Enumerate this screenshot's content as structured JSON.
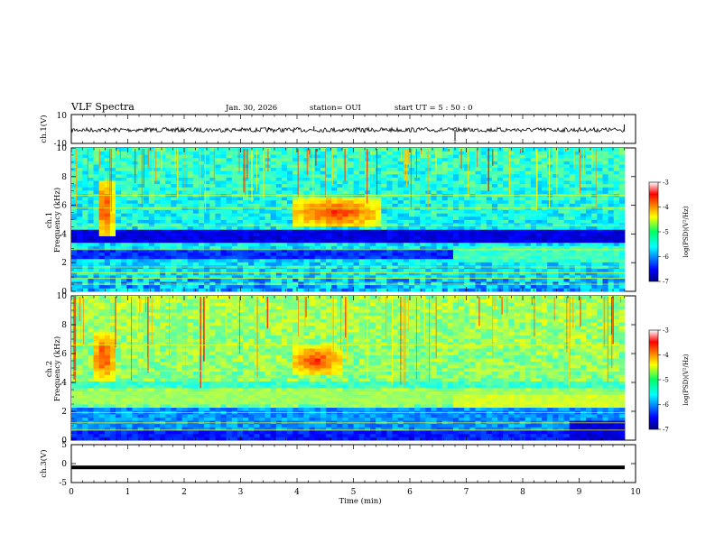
{
  "header": {
    "title": "VLF Spectra",
    "date": "Jan. 30, 2026",
    "station": "station= OUI",
    "start_ut": "start  UT  =   5 : 50 : 0"
  },
  "chart_data": [
    {
      "type": "line",
      "name": "ch1-waveform",
      "ylabel": "ch.1(V)",
      "ylim": [
        -10,
        10
      ],
      "yticks": [
        "10",
        "-10"
      ],
      "xlim": [
        0,
        10
      ],
      "baseline": 0
    },
    {
      "type": "heatmap",
      "name": "ch1-spectrogram",
      "ylabel": [
        "ch.1",
        "Frequency (kHz)"
      ],
      "ylim": [
        0,
        10
      ],
      "yticks": [
        "0",
        "2",
        "4",
        "6",
        "8",
        "10"
      ],
      "xlim": [
        0,
        10
      ],
      "colorbar": {
        "label": "log(PSD)(V²/Hz)",
        "range": [
          -7,
          -3
        ],
        "ticks": [
          "-3",
          "-4",
          "-5",
          "-6",
          "-7"
        ]
      },
      "features": [
        {
          "name": "emission-burst-1",
          "t_min": [
            0.45,
            0.75
          ],
          "f_khz": [
            3.8,
            7.8
          ]
        },
        {
          "name": "emission-burst-2",
          "t_min": [
            3.9,
            5.5
          ],
          "f_khz": [
            4.5,
            6.5
          ]
        }
      ],
      "level_change_at_min": 6.8
    },
    {
      "type": "heatmap",
      "name": "ch2-spectrogram",
      "ylabel": [
        "ch.2",
        "Frequency (kHz)"
      ],
      "ylim": [
        0,
        10
      ],
      "yticks": [
        "0",
        "2",
        "4",
        "6",
        "8",
        "10"
      ],
      "xlim": [
        0,
        10
      ],
      "colorbar": {
        "label": "log(PSD)(V²/Hz)",
        "range": [
          -7,
          -3
        ],
        "ticks": [
          "-3",
          "-4",
          "-5",
          "-6",
          "-7"
        ]
      },
      "features": [
        {
          "name": "emission-burst-1",
          "t_min": [
            0.35,
            0.8
          ],
          "f_khz": [
            4.2,
            7.5
          ]
        },
        {
          "name": "emission-burst-2",
          "t_min": [
            3.9,
            4.8
          ],
          "f_khz": [
            4.5,
            6.5
          ]
        }
      ],
      "level_change_at_min": 6.8
    },
    {
      "type": "line",
      "name": "ch3-waveform",
      "ylabel": "ch.3(V)",
      "ylim": [
        -5,
        5
      ],
      "yticks": [
        "5",
        "0",
        "-5"
      ],
      "xlim": [
        0,
        10
      ],
      "baseline": -1
    }
  ],
  "xaxis": {
    "label": "Time (min)",
    "ticks": [
      "0",
      "1",
      "2",
      "3",
      "4",
      "5",
      "6",
      "7",
      "8",
      "9",
      "10"
    ]
  }
}
